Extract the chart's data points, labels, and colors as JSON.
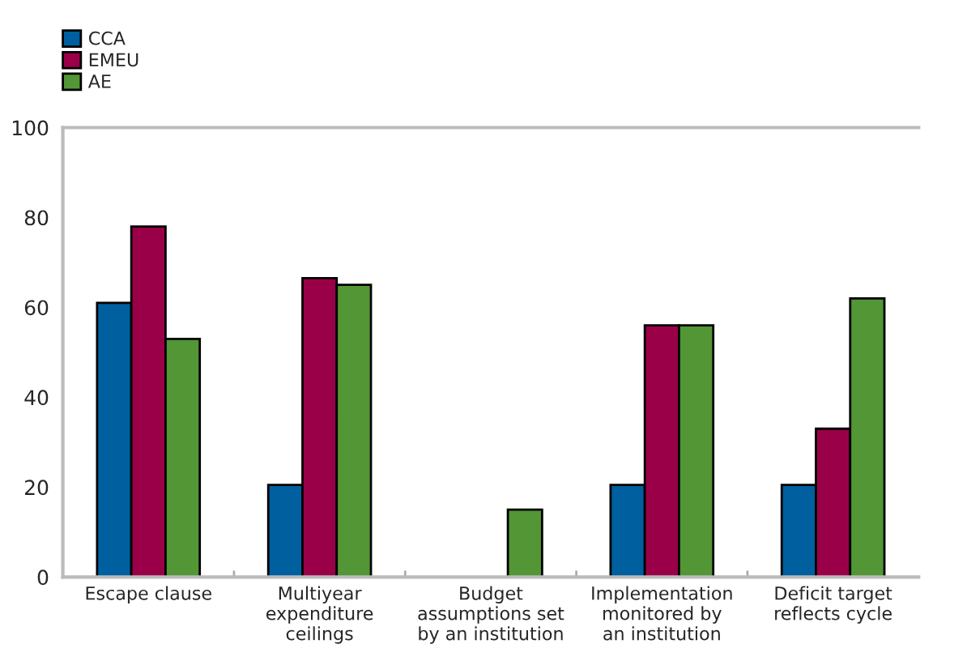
{
  "chart_data": {
    "type": "bar",
    "categories": [
      "Escape clause",
      "Multiyear\nexpenditure\nceilings",
      "Budget\nassumptions set\nby an institution",
      "Implementation\nmonitored by\nan institution",
      "Deficit target\nreflects cycle"
    ],
    "series": [
      {
        "name": "CCA",
        "color": "#005f9e",
        "values": [
          61,
          20.5,
          null,
          20.5,
          20.5
        ]
      },
      {
        "name": "EMEU",
        "color": "#9a0048",
        "values": [
          78,
          66.5,
          null,
          56,
          33
        ]
      },
      {
        "name": "AE",
        "color": "#529636",
        "values": [
          53,
          65,
          15,
          56,
          62
        ]
      }
    ],
    "ylim": [
      0,
      100
    ],
    "yticks": [
      0,
      20,
      40,
      60,
      80,
      100
    ],
    "grid": false,
    "legend": "top left"
  }
}
